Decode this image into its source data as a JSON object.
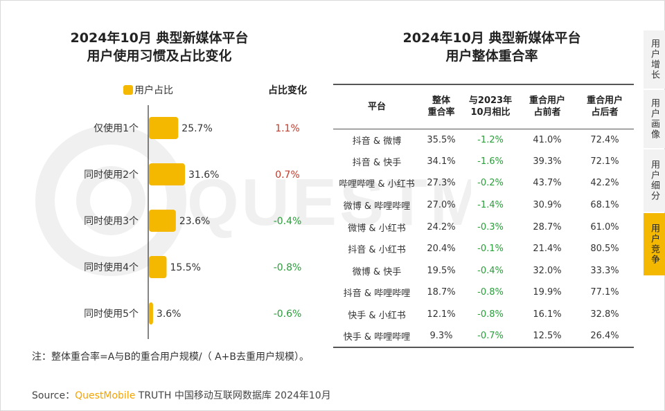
{
  "left_panel": {
    "title_line1": "2024年10月 典型新媒体平台",
    "title_line2": "用户使用习惯及占比变化",
    "legend_label": "用户占比",
    "change_header": "占比变化"
  },
  "right_panel": {
    "title_line1": "2024年10月 典型新媒体平台",
    "title_line2": "用户整体重合率",
    "headers": [
      "平台",
      "整体\n重合率",
      "与2023年\n10月相比",
      "重合用户\n占前者",
      "重合用户\n占后者"
    ],
    "rows": [
      [
        "抖音 & 微博",
        "35.5%",
        "-1.2%",
        "41.0%",
        "72.4%"
      ],
      [
        "抖音 & 快手",
        "34.1%",
        "-1.6%",
        "39.3%",
        "72.1%"
      ],
      [
        "哔哩哔哩 & 小红书",
        "27.3%",
        "-0.2%",
        "43.7%",
        "42.2%"
      ],
      [
        "微博 & 哔哩哔哩",
        "27.0%",
        "-1.4%",
        "30.9%",
        "68.1%"
      ],
      [
        "微博 & 小红书",
        "24.2%",
        "-0.3%",
        "28.7%",
        "61.0%"
      ],
      [
        "抖音 & 小红书",
        "20.4%",
        "-0.1%",
        "21.4%",
        "80.5%"
      ],
      [
        "微博 & 快手",
        "19.5%",
        "-0.4%",
        "32.0%",
        "33.3%"
      ],
      [
        "抖音 & 哔哩哔哩",
        "18.7%",
        "-0.8%",
        "19.9%",
        "77.1%"
      ],
      [
        "快手 & 小红书",
        "12.1%",
        "-0.8%",
        "16.1%",
        "32.8%"
      ],
      [
        "快手 & 哔哩哔哩",
        "9.3%",
        "-0.7%",
        "12.5%",
        "26.4%"
      ]
    ]
  },
  "side_nav": [
    "用户增长",
    "用户画像",
    "用户细分",
    "用户竞争"
  ],
  "side_nav_active": 3,
  "note": "注：整体重合率=A与B的重合用户规模/（ A+B去重用户规模）。",
  "source_prefix": "Source：",
  "source_brand": "QuestMobile",
  "source_suffix": " TRUTH 中国移动互联网数据库 2024年10月",
  "watermark_text": "QUESTMOBILE",
  "colors": {
    "bar": "#f5b800",
    "positive": "#c0392b",
    "negative": "#2a9d3a",
    "active_tab": "#f5b800"
  },
  "chart_data": {
    "type": "bar",
    "orientation": "horizontal",
    "categories": [
      "仅使用1个",
      "同时使用2个",
      "同时使用3个",
      "同时使用4个",
      "同时使用5个"
    ],
    "series": [
      {
        "name": "用户占比",
        "values": [
          25.7,
          31.6,
          23.6,
          15.5,
          3.6
        ]
      }
    ],
    "value_labels": [
      "25.7%",
      "31.6%",
      "23.6%",
      "15.5%",
      "3.6%"
    ],
    "changes": [
      "1.1%",
      "0.7%",
      "-0.4%",
      "-0.8%",
      "-0.6%"
    ],
    "change_values": [
      1.1,
      0.7,
      -0.4,
      -0.8,
      -0.6
    ],
    "xlim": [
      0,
      31.6
    ],
    "legend": "top-left"
  }
}
